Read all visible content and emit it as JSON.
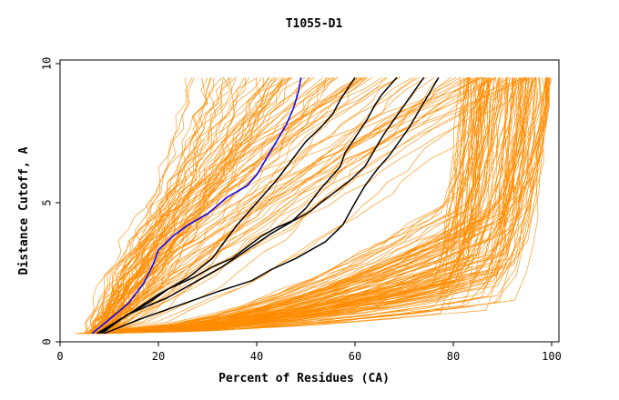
{
  "chart_data": {
    "type": "line",
    "title": "T1055-D1",
    "xlabel": "Percent of Residues (CA)",
    "ylabel": "Distance Cutoff, A",
    "xlim": [
      0,
      100
    ],
    "ylim": [
      0,
      10
    ],
    "x_ticks": [
      "0",
      "20",
      "40",
      "60",
      "80",
      "100"
    ],
    "y_ticks": [
      "0",
      "5",
      "10"
    ],
    "grid": false,
    "legend": "none",
    "colors": {
      "bundle": "#ff8c00",
      "highlight": "#000000",
      "best": "#0000ff"
    },
    "series": [
      {
        "color": "best",
        "x": [
          6.5,
          10,
          14,
          17,
          19,
          20,
          23,
          26,
          30,
          34,
          38,
          40,
          42,
          44,
          46,
          47.5,
          48.5,
          49
        ],
        "y": [
          0.3,
          0.8,
          1.4,
          2.1,
          2.8,
          3.3,
          3.8,
          4.2,
          4.6,
          5.2,
          5.6,
          6.0,
          6.6,
          7.2,
          7.8,
          8.4,
          9.0,
          9.5
        ]
      },
      {
        "color": "highlight",
        "x": [
          8,
          14,
          20,
          26,
          31,
          33,
          36,
          40,
          44,
          47,
          50,
          53,
          55.5,
          57,
          58.5,
          60
        ],
        "y": [
          0.3,
          1.0,
          1.7,
          2.3,
          3.0,
          3.5,
          4.2,
          5.0,
          5.8,
          6.5,
          7.2,
          7.7,
          8.2,
          8.7,
          9.1,
          9.5
        ]
      },
      {
        "color": "highlight",
        "x": [
          7.5,
          14,
          22,
          28,
          33,
          38,
          43,
          47,
          50,
          53,
          55,
          57,
          58,
          59.5,
          61,
          62.5,
          64,
          65.5,
          67,
          68.5
        ],
        "y": [
          0.3,
          1.0,
          1.6,
          2.2,
          2.7,
          3.3,
          3.9,
          4.3,
          4.8,
          5.5,
          5.9,
          6.3,
          6.8,
          7.2,
          7.6,
          8.0,
          8.5,
          8.9,
          9.2,
          9.5
        ]
      },
      {
        "color": "highlight",
        "x": [
          9,
          16,
          24,
          32,
          39,
          43,
          48,
          54,
          57.5,
          60,
          62,
          64.5,
          67,
          69,
          71,
          73,
          75,
          77
        ],
        "y": [
          0.3,
          0.8,
          1.3,
          1.8,
          2.2,
          2.6,
          3.0,
          3.6,
          4.2,
          5.0,
          5.6,
          6.2,
          6.7,
          7.2,
          7.7,
          8.3,
          8.9,
          9.5
        ]
      },
      {
        "color": "highlight",
        "x": [
          8.5,
          13,
          18,
          22,
          27,
          31,
          35,
          38,
          41,
          44,
          48,
          51,
          53,
          56,
          59,
          62,
          64,
          66,
          68,
          70,
          72,
          74
        ],
        "y": [
          0.3,
          0.9,
          1.4,
          1.9,
          2.3,
          2.7,
          3.0,
          3.4,
          3.8,
          4.1,
          4.4,
          4.7,
          5.0,
          5.4,
          5.8,
          6.3,
          6.9,
          7.5,
          8.0,
          8.5,
          9.0,
          9.5
        ]
      }
    ]
  }
}
